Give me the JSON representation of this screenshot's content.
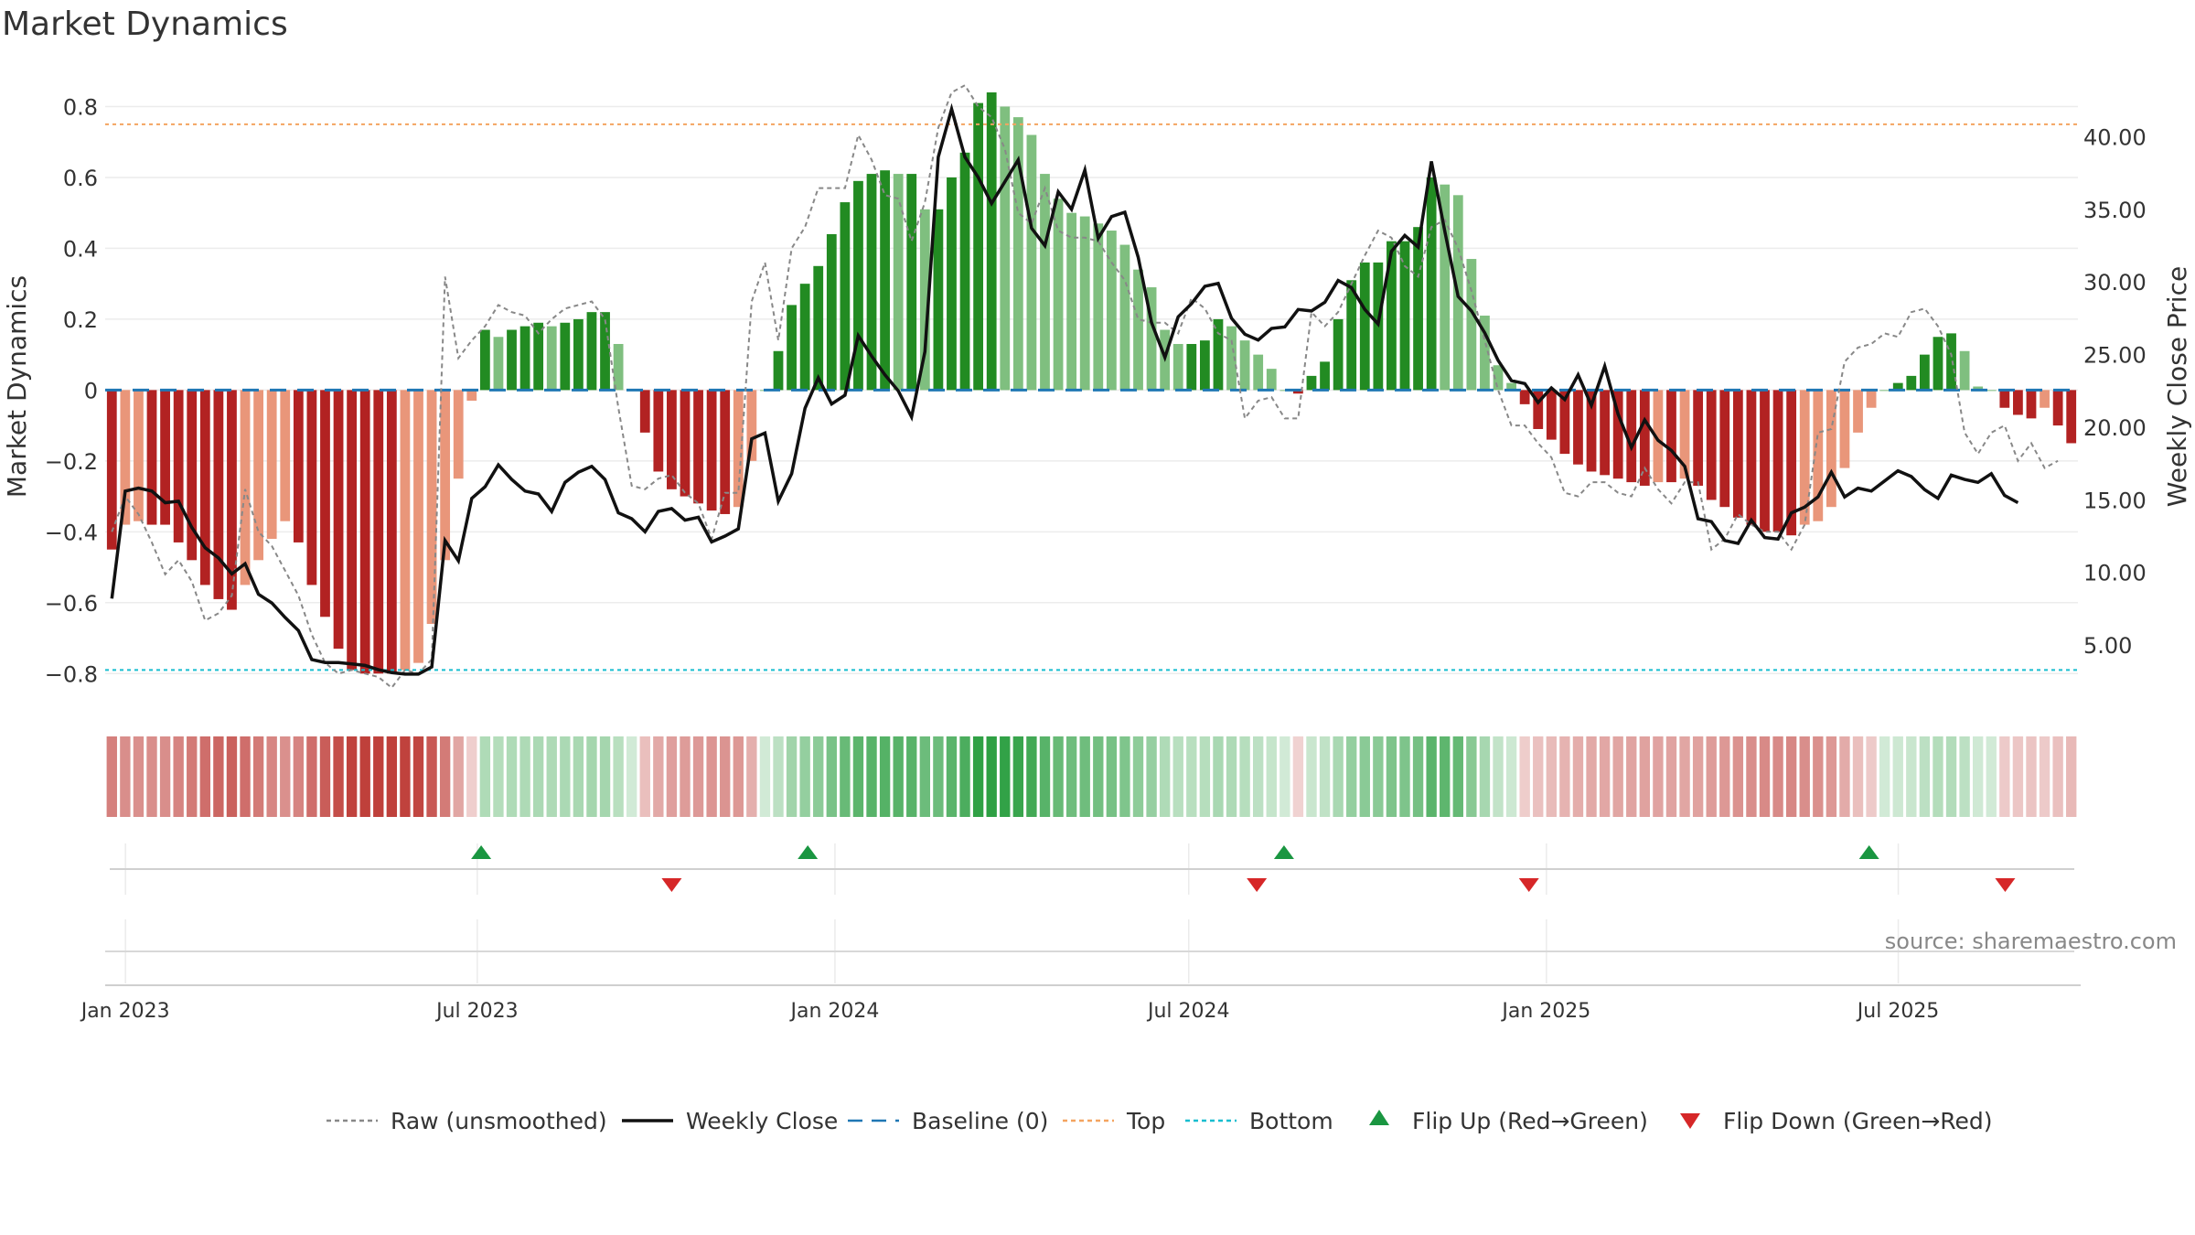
{
  "title": "Market Dynamics",
  "source": "source: sharemaestro.com",
  "colors": {
    "strong_red": "#b22222",
    "light_red": "#e9967a",
    "strong_green": "#228b22",
    "light_green": "#7fbf7f",
    "raw": "#888888",
    "close": "#111111",
    "baseline": "#1f77b4",
    "top": "#f4a460",
    "bottom": "#17becf",
    "flip_up": "#1a9641",
    "flip_down": "#d62728"
  },
  "chart_data": {
    "type": "bar",
    "ylabel": "Market Dynamics",
    "y2label": "Weekly Close Price",
    "ylim": [
      -0.9,
      0.92
    ],
    "y2lim": [
      0.6,
      45.0
    ],
    "y_ticks": [
      -0.8,
      -0.6,
      -0.4,
      -0.2,
      0,
      0.2,
      0.4,
      0.6,
      0.8
    ],
    "y_tick_labels": [
      "−0.8",
      "−0.6",
      "−0.4",
      "−0.2",
      "0",
      "0.2",
      "0.4",
      "0.6",
      "0.8"
    ],
    "y2_ticks": [
      5,
      10,
      15,
      20,
      25,
      30,
      35,
      40
    ],
    "y2_tick_labels": [
      "5.00",
      "10.00",
      "15.00",
      "20.00",
      "25.00",
      "30.00",
      "35.00",
      "40.00"
    ],
    "x_ticks": [
      "2023-01-01",
      "2023-07-01",
      "2024-01-01",
      "2024-07-01",
      "2025-01-01",
      "2025-07-01"
    ],
    "x_tick_labels": [
      "Jan 2023",
      "Jul 2023",
      "Jan 2024",
      "Jul 2024",
      "Jan 2025",
      "Jul 2025"
    ],
    "top_level": 0.75,
    "bottom_level": -0.79,
    "baseline_level": 0,
    "first_week": "2022-12-25",
    "last_week": "2025-09-28",
    "series": [
      {
        "name": "Market Dynamics (smoothed)",
        "values": [
          -0.45,
          -0.38,
          -0.37,
          -0.38,
          -0.38,
          -0.43,
          -0.48,
          -0.55,
          -0.59,
          -0.62,
          -0.55,
          -0.48,
          -0.42,
          -0.37,
          -0.43,
          -0.55,
          -0.64,
          -0.73,
          -0.79,
          -0.8,
          -0.8,
          -0.8,
          -0.79,
          -0.77,
          -0.66,
          -0.48,
          -0.25,
          -0.03,
          0.17,
          0.15,
          0.17,
          0.18,
          0.19,
          0.18,
          0.19,
          0.2,
          0.22,
          0.22,
          0.13,
          0.0,
          -0.12,
          -0.23,
          -0.28,
          -0.3,
          -0.32,
          -0.34,
          -0.35,
          -0.33,
          -0.2,
          0.0,
          0.11,
          0.24,
          0.3,
          0.35,
          0.44,
          0.53,
          0.59,
          0.61,
          0.62,
          0.61,
          0.61,
          0.51,
          0.51,
          0.6,
          0.67,
          0.81,
          0.84,
          0.8,
          0.77,
          0.72,
          0.61,
          0.54,
          0.5,
          0.49,
          0.47,
          0.45,
          0.41,
          0.34,
          0.29,
          0.17,
          0.13,
          0.13,
          0.14,
          0.2,
          0.18,
          0.14,
          0.1,
          0.06,
          0.0,
          -0.01,
          0.04,
          0.08,
          0.2,
          0.31,
          0.36,
          0.36,
          0.42,
          0.42,
          0.46,
          0.6,
          0.58,
          0.55,
          0.37,
          0.21,
          0.07,
          0.02,
          -0.04,
          -0.11,
          -0.14,
          -0.18,
          -0.21,
          -0.23,
          -0.24,
          -0.25,
          -0.26,
          -0.27,
          -0.26,
          -0.26,
          -0.25,
          -0.27,
          -0.31,
          -0.33,
          -0.36,
          -0.38,
          -0.4,
          -0.4,
          -0.41,
          -0.38,
          -0.37,
          -0.33,
          -0.22,
          -0.12,
          -0.05,
          0.0,
          0.02,
          0.04,
          0.1,
          0.15,
          0.16,
          0.11,
          0.01,
          0.0,
          -0.05,
          -0.07,
          -0.08,
          -0.05,
          -0.1,
          -0.15
        ]
      },
      {
        "name": "Raw (unsmoothed)",
        "values": [
          -0.4,
          -0.3,
          -0.35,
          -0.43,
          -0.52,
          -0.48,
          -0.54,
          -0.65,
          -0.63,
          -0.58,
          -0.28,
          -0.4,
          -0.44,
          -0.51,
          -0.58,
          -0.69,
          -0.77,
          -0.8,
          -0.79,
          -0.8,
          -0.81,
          -0.84,
          -0.79,
          -0.8,
          -0.76,
          0.32,
          0.09,
          0.14,
          0.18,
          0.24,
          0.22,
          0.21,
          0.16,
          0.2,
          0.23,
          0.24,
          0.25,
          0.2,
          -0.05,
          -0.27,
          -0.28,
          -0.25,
          -0.24,
          -0.29,
          -0.32,
          -0.42,
          -0.29,
          -0.29,
          0.25,
          0.36,
          0.14,
          0.4,
          0.46,
          0.57,
          0.57,
          0.57,
          0.72,
          0.65,
          0.55,
          0.54,
          0.42,
          0.53,
          0.74,
          0.84,
          0.86,
          0.8,
          0.77,
          0.68,
          0.5,
          0.47,
          0.57,
          0.45,
          0.43,
          0.43,
          0.42,
          0.36,
          0.31,
          0.2,
          0.19,
          0.19,
          0.16,
          0.26,
          0.23,
          0.16,
          0.14,
          -0.08,
          -0.03,
          -0.02,
          -0.08,
          -0.08,
          0.22,
          0.18,
          0.22,
          0.3,
          0.38,
          0.45,
          0.43,
          0.35,
          0.32,
          0.46,
          0.48,
          0.4,
          0.28,
          0.14,
          0.0,
          -0.1,
          -0.1,
          -0.15,
          -0.19,
          -0.29,
          -0.3,
          -0.26,
          -0.26,
          -0.29,
          -0.3,
          -0.22,
          -0.28,
          -0.32,
          -0.26,
          -0.26,
          -0.45,
          -0.42,
          -0.35,
          -0.38,
          -0.4,
          -0.4,
          -0.45,
          -0.38,
          -0.12,
          -0.11,
          0.08,
          0.12,
          0.13,
          0.16,
          0.15,
          0.22,
          0.23,
          0.18,
          0.1,
          -0.12,
          -0.18,
          -0.12,
          -0.1,
          -0.2,
          -0.15,
          -0.22,
          -0.2
        ]
      },
      {
        "name": "Weekly Close",
        "axis": "y2",
        "values": [
          8.2,
          15.6,
          15.8,
          15.6,
          14.8,
          14.9,
          13.1,
          11.7,
          11.0,
          9.9,
          10.6,
          8.5,
          7.9,
          6.9,
          6.0,
          4.0,
          3.8,
          3.8,
          3.7,
          3.6,
          3.3,
          3.1,
          3.0,
          3.0,
          3.5,
          12.2,
          10.8,
          15.1,
          15.9,
          17.4,
          16.4,
          15.6,
          15.4,
          14.2,
          16.2,
          16.9,
          17.3,
          16.4,
          14.1,
          13.7,
          12.8,
          14.2,
          14.4,
          13.6,
          13.8,
          12.1,
          12.5,
          13.0,
          19.2,
          19.6,
          14.9,
          16.8,
          21.3,
          23.4,
          21.6,
          22.2,
          26.3,
          24.9,
          23.6,
          22.5,
          20.7,
          25.2,
          38.6,
          41.9,
          38.6,
          37.2,
          35.4,
          36.9,
          38.4,
          33.7,
          32.5,
          36.2,
          35.0,
          37.7,
          33.0,
          34.5,
          34.8,
          31.7,
          27.2,
          24.8,
          27.6,
          28.5,
          29.7,
          29.9,
          27.5,
          26.4,
          26.0,
          26.8,
          26.9,
          28.1,
          28.0,
          28.6,
          30.1,
          29.6,
          28.1,
          27.1,
          32.1,
          33.2,
          32.4,
          38.3,
          33.5,
          29.0,
          28.0,
          26.5,
          24.6,
          23.2,
          23.0,
          21.7,
          22.7,
          21.9,
          23.6,
          21.5,
          24.2,
          20.9,
          18.6,
          20.5,
          19.1,
          18.4,
          17.3,
          13.7,
          13.5,
          12.2,
          12.0,
          13.6,
          12.4,
          12.3,
          14.1,
          14.5,
          15.2,
          16.9,
          15.2,
          15.8,
          15.6,
          16.3,
          17.0,
          16.6,
          15.7,
          15.1,
          16.7,
          16.4,
          16.2,
          16.8,
          15.3,
          14.8
        ]
      }
    ],
    "regime_strip": "colored cells encoding the sign and strength of the smoothed value per week",
    "flip_up_dates": [
      "2023-07-03",
      "2023-12-18",
      "2024-08-19",
      "2025-06-16"
    ],
    "flip_down_dates": [
      "2023-10-09",
      "2024-08-05",
      "2024-12-23",
      "2025-08-25"
    ],
    "legend": {
      "placement": "bottom",
      "items": [
        {
          "label": "Raw (unsmoothed)",
          "kind": "dotted",
          "color": "#888888"
        },
        {
          "label": "Weekly Close",
          "kind": "solid",
          "color": "#111111"
        },
        {
          "label": "Baseline (0)",
          "kind": "dashed",
          "color": "#1f77b4"
        },
        {
          "label": "Top",
          "kind": "dotted",
          "color": "#f4a460"
        },
        {
          "label": "Bottom",
          "kind": "dotted",
          "color": "#17becf"
        },
        {
          "label": "Flip Up (Red→Green)",
          "kind": "tri-up",
          "color": "#1a9641"
        },
        {
          "label": "Flip Down (Green→Red)",
          "kind": "tri-down",
          "color": "#d62728"
        }
      ]
    }
  }
}
